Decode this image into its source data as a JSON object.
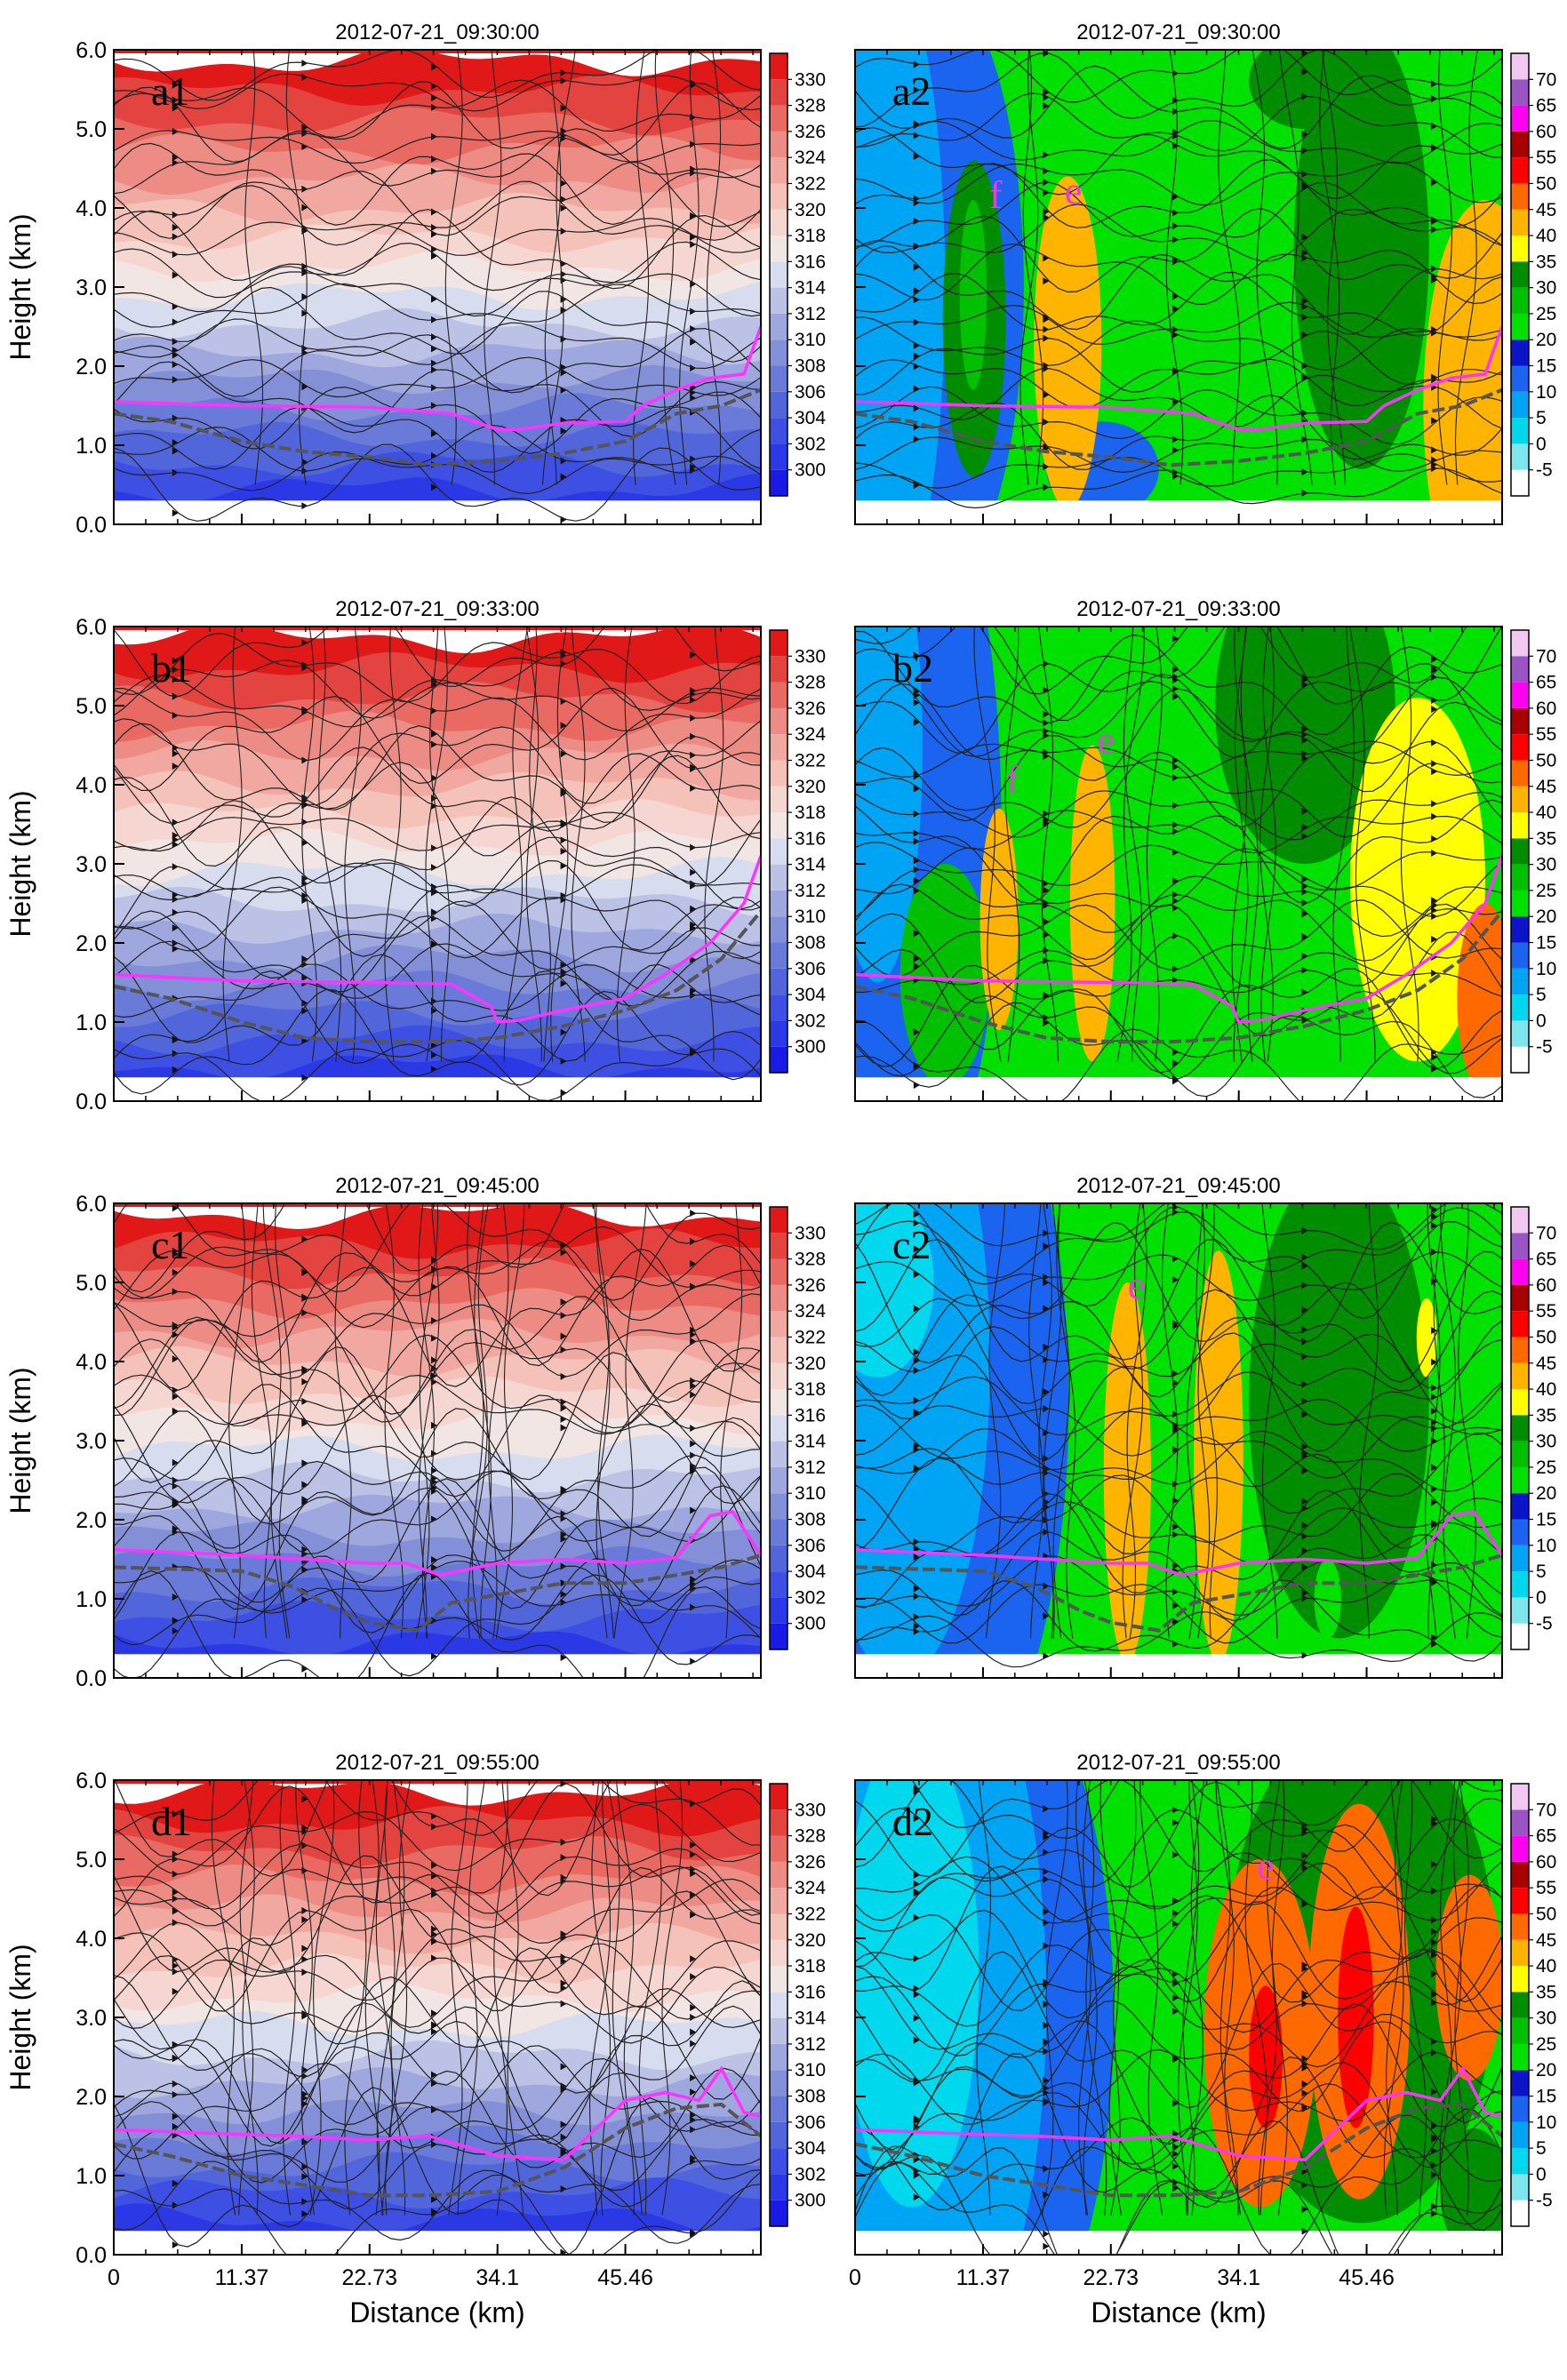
{
  "figure": {
    "xlabel": "Distance (km)",
    "ylabel": "Height (km)",
    "xticks": [
      "0",
      "11.37",
      "22.73",
      "34.1",
      "45.46"
    ],
    "yticks": [
      "0.0",
      "1.0",
      "2.0",
      "3.0",
      "4.0",
      "5.0",
      "6.0"
    ]
  },
  "colorbars": {
    "theta": {
      "labels": [
        "300",
        "302",
        "304",
        "306",
        "308",
        "310",
        "312",
        "314",
        "316",
        "318",
        "320",
        "322",
        "324",
        "326",
        "328",
        "330"
      ],
      "colors": [
        "#1a1ae6",
        "#2a38e6",
        "#3e50e4",
        "#5266dc",
        "#6a7ad8",
        "#8390d8",
        "#9ea8de",
        "#bcc2e6",
        "#d8dcef",
        "#f1e6e4",
        "#f6d6d0",
        "#f4c2b8",
        "#f0a8a0",
        "#ec8c84",
        "#e86a62",
        "#e44440",
        "#e01818"
      ]
    },
    "dbz": {
      "labels": [
        "-5",
        "0",
        "5",
        "10",
        "15",
        "20",
        "25",
        "30",
        "35",
        "40",
        "45",
        "50",
        "55",
        "60",
        "65",
        "70"
      ],
      "colors": [
        "#ffffff",
        "#7fe6ee",
        "#00d8ee",
        "#00a4f4",
        "#1a64f0",
        "#0b14c8",
        "#00e100",
        "#00c000",
        "#008d00",
        "#ffff00",
        "#ffb400",
        "#ff6a00",
        "#ff0000",
        "#a80000",
        "#ff00f0",
        "#9955c4",
        "#f2c8f2"
      ]
    }
  },
  "panels": [
    {
      "id": "a1",
      "label": "a1",
      "title": "2012-07-21_09:30:00",
      "field": "theta",
      "annotations": []
    },
    {
      "id": "a2",
      "label": "a2",
      "title": "2012-07-21_09:30:00",
      "field": "dbz",
      "annotations": [
        {
          "text": "f",
          "x": 12.5,
          "y": 4.0
        },
        {
          "text": "e",
          "x": 19.4,
          "y": 4.05
        }
      ]
    },
    {
      "id": "b1",
      "label": "b1",
      "title": "2012-07-21_09:33:00",
      "field": "theta",
      "annotations": []
    },
    {
      "id": "b2",
      "label": "b2",
      "title": "2012-07-21_09:33:00",
      "field": "dbz",
      "annotations": [
        {
          "text": "f",
          "x": 14.0,
          "y": 3.9
        },
        {
          "text": "e",
          "x": 22.3,
          "y": 4.4
        }
      ]
    },
    {
      "id": "c1",
      "label": "c1",
      "title": "2012-07-21_09:45:00",
      "field": "theta",
      "annotations": []
    },
    {
      "id": "c2",
      "label": "c2",
      "title": "2012-07-21_09:45:00",
      "field": "dbz",
      "annotations": [
        {
          "text": "e",
          "x": 25.0,
          "y": 4.8
        }
      ]
    },
    {
      "id": "d1",
      "label": "d1",
      "title": "2012-07-21_09:55:00",
      "field": "theta",
      "annotations": []
    },
    {
      "id": "d2",
      "label": "d2",
      "title": "2012-07-21_09:55:00",
      "field": "dbz",
      "annotations": [
        {
          "text": "e",
          "x": 36.5,
          "y": 4.75
        }
      ]
    }
  ],
  "chart_data": {
    "type": "heatmap",
    "x_range": [
      0,
      57.5
    ],
    "y_range": [
      0,
      6
    ],
    "xlabel": "Distance (km)",
    "ylabel": "Height (km)",
    "left_column_field": "theta",
    "right_column_field": "dbz",
    "theta_ranges": {
      "a1": {
        "surface": 299,
        "top": 331
      },
      "b1": {
        "surface": 299,
        "top": 331
      },
      "c1": {
        "surface": 300,
        "top": 331
      },
      "d1": {
        "surface": 300,
        "top": 331
      }
    },
    "magenta_line": {
      "a": {
        "x": [
          0,
          11.37,
          22.73,
          30,
          34.1,
          36,
          40,
          45.46,
          47,
          50,
          53,
          56,
          57.5
        ],
        "y": [
          1.55,
          1.5,
          1.48,
          1.4,
          1.2,
          1.2,
          1.28,
          1.3,
          1.5,
          1.7,
          1.85,
          1.9,
          2.5
        ]
      },
      "b": {
        "x": [
          0,
          11.37,
          22.73,
          30,
          33.5,
          34.1,
          36,
          40,
          45.46,
          49,
          53,
          56,
          57.5
        ],
        "y": [
          1.6,
          1.52,
          1.5,
          1.48,
          1.2,
          1.0,
          1.02,
          1.15,
          1.3,
          1.6,
          2.0,
          2.5,
          3.1
        ]
      },
      "c": {
        "x": [
          0,
          11.37,
          22.73,
          26,
          29,
          34.1,
          40,
          45.46,
          50,
          53,
          55,
          57.5
        ],
        "y": [
          1.62,
          1.55,
          1.45,
          1.45,
          1.3,
          1.45,
          1.5,
          1.45,
          1.52,
          2.05,
          2.1,
          1.55
        ]
      },
      "d": {
        "x": [
          0,
          11.37,
          16,
          22.73,
          28,
          34.1,
          40,
          45.46,
          49,
          52,
          54,
          56,
          57.5
        ],
        "y": [
          1.58,
          1.52,
          1.5,
          1.45,
          1.5,
          1.25,
          1.2,
          1.95,
          2.05,
          1.95,
          2.35,
          1.8,
          1.75
        ]
      }
    },
    "gray_line": {
      "a": {
        "x": [
          0,
          5,
          11.37,
          17,
          22.73,
          28,
          34.1,
          40,
          45.46,
          50,
          54,
          57.5
        ],
        "y": [
          1.4,
          1.3,
          1.05,
          0.92,
          0.85,
          0.75,
          0.8,
          0.9,
          1.05,
          1.4,
          1.5,
          1.7
        ]
      },
      "b": {
        "x": [
          0,
          5,
          11.37,
          17,
          22.73,
          28,
          34.1,
          40,
          45.46,
          50,
          54,
          57.5
        ],
        "y": [
          1.45,
          1.3,
          1.0,
          0.8,
          0.75,
          0.75,
          0.8,
          0.95,
          1.15,
          1.4,
          1.8,
          2.4
        ]
      },
      "c": {
        "x": [
          0,
          11.37,
          16,
          20,
          22.73,
          27,
          30,
          34.1,
          40,
          45.46,
          50,
          54,
          57.5
        ],
        "y": [
          1.4,
          1.35,
          1.15,
          0.85,
          0.7,
          0.6,
          0.95,
          1.05,
          1.2,
          1.2,
          1.3,
          1.4,
          1.55
        ]
      },
      "d": {
        "x": [
          0,
          5,
          11.37,
          16,
          22.73,
          28,
          34.1,
          40,
          45.46,
          50,
          54,
          57.5
        ],
        "y": [
          1.4,
          1.25,
          1.0,
          0.9,
          0.75,
          0.75,
          0.8,
          1.1,
          1.6,
          1.85,
          1.9,
          1.5
        ]
      }
    },
    "reflectivity_cells": {
      "a2": [
        {
          "x": 10.6,
          "y": 2.6,
          "rx": 2.8,
          "ry": 2.0,
          "dbz": 30
        },
        {
          "x": 18.9,
          "y": 2.3,
          "rx": 3.0,
          "ry": 2.1,
          "dbz": 40
        },
        {
          "x": 56,
          "y": 1.5,
          "rx": 5.5,
          "ry": 2.6,
          "dbz": 40
        },
        {
          "x": 10.5,
          "y": 2.9,
          "rx": 1.2,
          "ry": 1.2,
          "dbz": 25
        }
      ],
      "b2": [
        {
          "x": 12.8,
          "y": 2.3,
          "rx": 1.7,
          "ry": 1.4,
          "dbz": 40
        },
        {
          "x": 21.1,
          "y": 2.5,
          "rx": 2.0,
          "ry": 2.0,
          "dbz": 40
        },
        {
          "x": 50,
          "y": 2.8,
          "rx": 6.0,
          "ry": 2.3,
          "dbz": 35
        },
        {
          "x": 56,
          "y": 1.3,
          "rx": 2.5,
          "ry": 1.2,
          "dbz": 45
        }
      ],
      "c2": [
        {
          "x": 24.2,
          "y": 2.6,
          "rx": 2.1,
          "ry": 2.4,
          "dbz": 40
        },
        {
          "x": 32.3,
          "y": 2.8,
          "rx": 2.2,
          "ry": 2.6,
          "dbz": 40
        },
        {
          "x": 50.8,
          "y": 4.3,
          "rx": 0.9,
          "ry": 0.5,
          "dbz": 35
        }
      ],
      "d2": [
        {
          "x": 36,
          "y": 2.8,
          "rx": 5.0,
          "ry": 2.2,
          "dbz": 45
        },
        {
          "x": 44.8,
          "y": 3.2,
          "rx": 4.5,
          "ry": 2.5,
          "dbz": 45
        },
        {
          "x": 54.6,
          "y": 3.5,
          "rx": 3.0,
          "ry": 1.3,
          "dbz": 45
        },
        {
          "x": 36.5,
          "y": 2.5,
          "rx": 1.5,
          "ry": 0.9,
          "dbz": 50
        },
        {
          "x": 44.5,
          "y": 3.0,
          "rx": 1.6,
          "ry": 1.4,
          "dbz": 50
        }
      ]
    }
  }
}
